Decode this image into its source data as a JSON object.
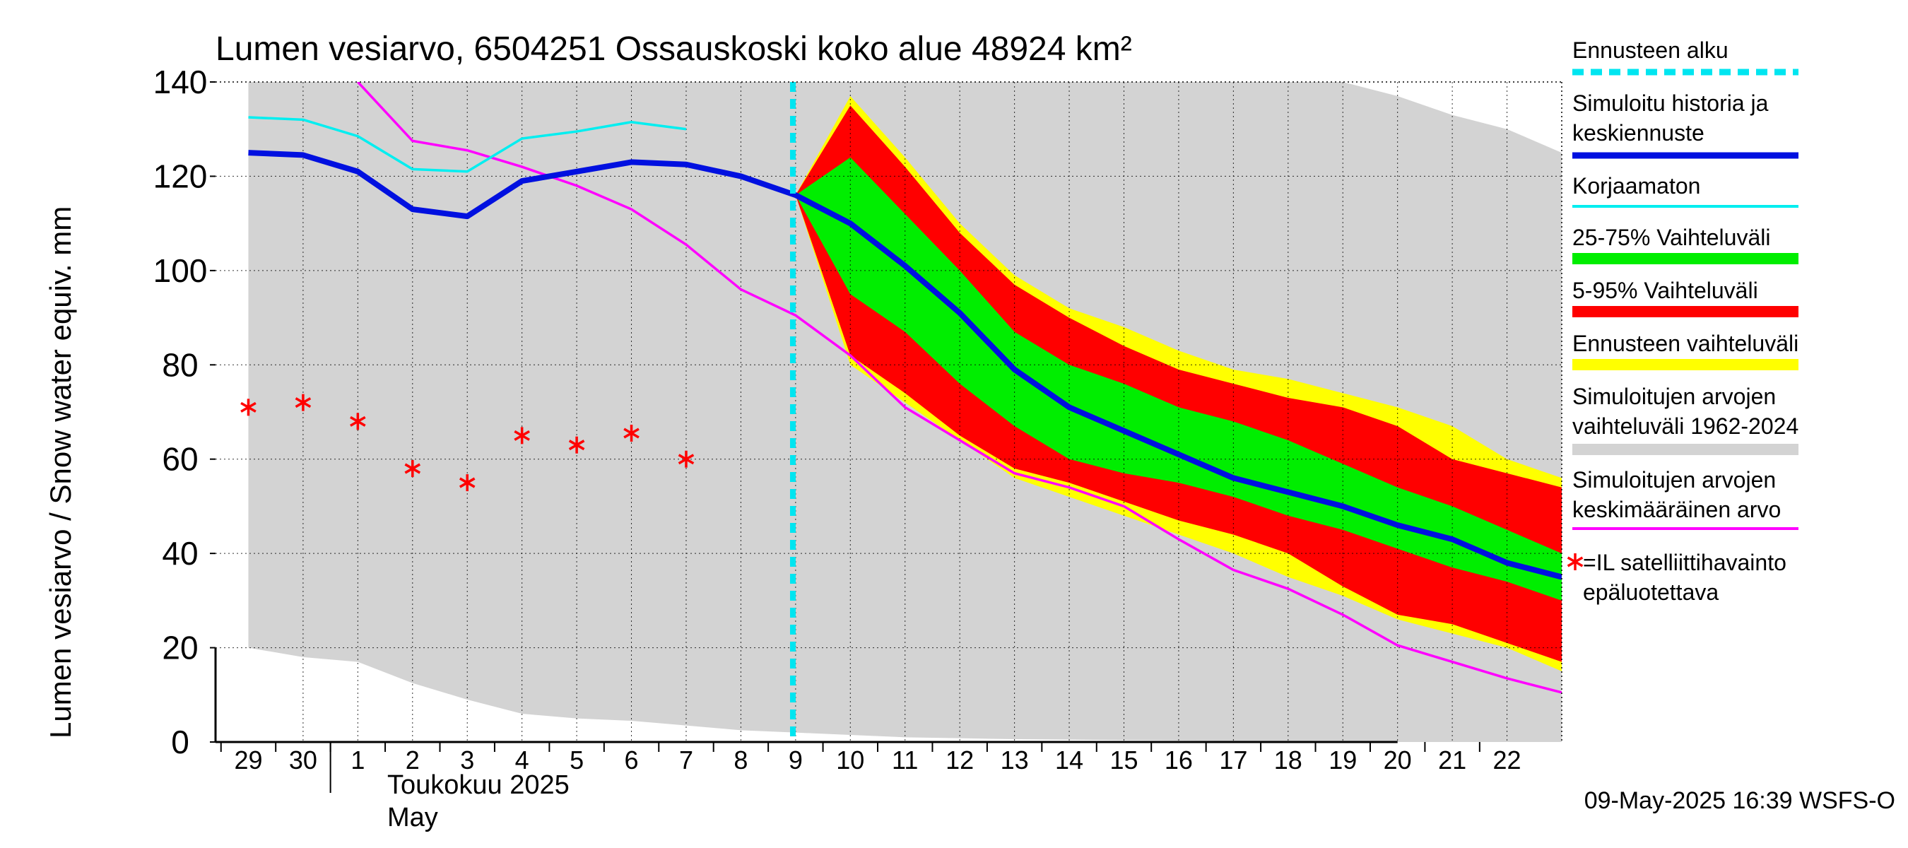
{
  "chart_data": {
    "type": "area",
    "title": "Lumen vesiarvo, 6504251 Ossauskoski koko alue 48924 km²",
    "ylabel": "Lumen vesiarvo / Snow water equiv.    mm",
    "ylim": [
      0,
      140
    ],
    "y_ticks": [
      "0",
      "20",
      "40",
      "60",
      "80",
      "100",
      "120",
      "140"
    ],
    "x_tick_labels": [
      "29",
      "30",
      "1",
      "2",
      "3",
      "4",
      "5",
      "6",
      "7",
      "8",
      "9",
      "10",
      "11",
      "12",
      "13",
      "14",
      "15",
      "16",
      "17",
      "18",
      "19",
      "20",
      "21",
      "22"
    ],
    "x_month_fi": "Toukokuu  2025",
    "x_month_en": "May",
    "timestamp": "09-May-2025 16:39 WSFS-O",
    "forecast_start_day": 9,
    "grid": true,
    "legend_position": "right",
    "legend": [
      {
        "label": "Ennusteen alku",
        "color": "#00e5f0",
        "style": "dashed"
      },
      {
        "label": "Simuloitu historia ja keskiennuste",
        "color": "#0010e0",
        "style": "thick"
      },
      {
        "label": "Korjaamaton",
        "color": "#00eef0",
        "style": "line"
      },
      {
        "label": "25-75% Vaihteluväli",
        "color": "#00ee00",
        "style": "band"
      },
      {
        "label": "5-95% Vaihteluväli",
        "color": "#ff0000",
        "style": "band"
      },
      {
        "label": "Ennusteen vaihteluväli",
        "color": "#ffff00",
        "style": "band"
      },
      {
        "label": "Simuloitujen arvojen vaihteluväli 1962-2024",
        "color": "#d3d3d3",
        "style": "band"
      },
      {
        "label": "Simuloitujen arvojen keskimääräinen arvo",
        "color": "#ff00ff",
        "style": "line"
      },
      {
        "label": "=IL satelliittihavainto epäluotettava",
        "color": "#ff0000",
        "style": "star"
      }
    ],
    "series": {
      "hist_range": {
        "x": [
          -1,
          0,
          1,
          2,
          3,
          4,
          5,
          6,
          7,
          8,
          9,
          10,
          11,
          12,
          13,
          14,
          15,
          16,
          17,
          18,
          19,
          20,
          21,
          22,
          23
        ],
        "upper": [
          140,
          140,
          140,
          140,
          140,
          140,
          140,
          140,
          140,
          140,
          140,
          140,
          140,
          140,
          140,
          140,
          140,
          140,
          140,
          140,
          140,
          140,
          140,
          140,
          140
        ],
        "lower": [
          20,
          18,
          17,
          12.5,
          9,
          6,
          5,
          4.5,
          3.5,
          2.5,
          2,
          1.5,
          1,
          0.8,
          0.6,
          0.5,
          0.4,
          0.3,
          0.2,
          0.1,
          0,
          0,
          0,
          0,
          0
        ],
        "upper_tail_x": [
          19,
          20,
          21,
          22,
          23
        ],
        "upper_tail": [
          140,
          137,
          133,
          130,
          125
        ]
      },
      "forecast_full": {
        "x": [
          9,
          10,
          11,
          12,
          13,
          14,
          15,
          16,
          17,
          18,
          19,
          20,
          21,
          22,
          23
        ],
        "upper": [
          116,
          137,
          124,
          110,
          99,
          92,
          88,
          83,
          79,
          77,
          74,
          71,
          67,
          60,
          56
        ],
        "lower": [
          116,
          80,
          72,
          64,
          56,
          52,
          48,
          44,
          40,
          35,
          31,
          26,
          23,
          20,
          15
        ]
      },
      "p5_95": {
        "x": [
          9,
          10,
          11,
          12,
          13,
          14,
          15,
          16,
          17,
          18,
          19,
          20,
          21,
          22,
          23
        ],
        "upper": [
          116,
          135,
          122,
          108,
          97,
          90,
          84,
          79,
          76,
          73,
          71,
          67,
          60,
          57,
          54
        ],
        "lower": [
          116,
          82,
          74,
          65,
          58,
          55,
          51,
          47,
          44,
          40,
          33,
          27,
          25,
          21,
          17
        ]
      },
      "p25_75": {
        "x": [
          9,
          10,
          11,
          12,
          13,
          14,
          15,
          16,
          17,
          18,
          19,
          20,
          21,
          22,
          23
        ],
        "upper": [
          116,
          124,
          112,
          100,
          87,
          80,
          76,
          71,
          68,
          64,
          59,
          54,
          50,
          45,
          40
        ],
        "lower": [
          116,
          95,
          87,
          76,
          67,
          60,
          57,
          55,
          52,
          48,
          45,
          41,
          37,
          34,
          30
        ]
      },
      "sim_history_mean": {
        "name": "Simuloitu historia ja keskiennuste",
        "x": [
          -1,
          0,
          1,
          2,
          3,
          4,
          5,
          6,
          7,
          8,
          9,
          10,
          11,
          12,
          13,
          14,
          15,
          16,
          17,
          18,
          19,
          20,
          21,
          22,
          23
        ],
        "y": [
          125,
          124.5,
          121,
          113,
          111.5,
          119,
          121,
          123,
          122.5,
          120,
          116,
          110,
          101,
          91,
          79,
          71,
          66,
          61,
          56,
          53,
          50,
          46,
          43,
          38,
          35
        ]
      },
      "uncorrected": {
        "name": "Korjaamaton",
        "x": [
          -1,
          0,
          1,
          2,
          3,
          4,
          5,
          6,
          7
        ],
        "y": [
          132.5,
          132,
          128.5,
          121.5,
          121,
          128,
          129.5,
          131.5,
          130
        ]
      },
      "hist_mean": {
        "name": "Simuloitujen arvojen keskimääräinen arvo",
        "x": [
          1,
          2,
          3,
          4,
          5,
          6,
          7,
          8,
          9,
          10,
          11,
          12,
          13,
          14,
          15,
          16,
          17,
          18,
          19,
          20,
          21,
          22,
          23
        ],
        "y": [
          140,
          127.5,
          125.5,
          122,
          118,
          113,
          105.5,
          96,
          90.5,
          82,
          71,
          64,
          57,
          54,
          50,
          43,
          36.5,
          32.5,
          27,
          20.5,
          17,
          13.5,
          10.5
        ]
      },
      "satellite": {
        "name": "=IL satelliittihavainto epäluotettava",
        "x": [
          -1,
          0,
          1,
          2,
          3,
          4,
          5,
          6,
          7
        ],
        "y": [
          71,
          72,
          68,
          58,
          55,
          65,
          63,
          65.5,
          60
        ]
      }
    }
  }
}
